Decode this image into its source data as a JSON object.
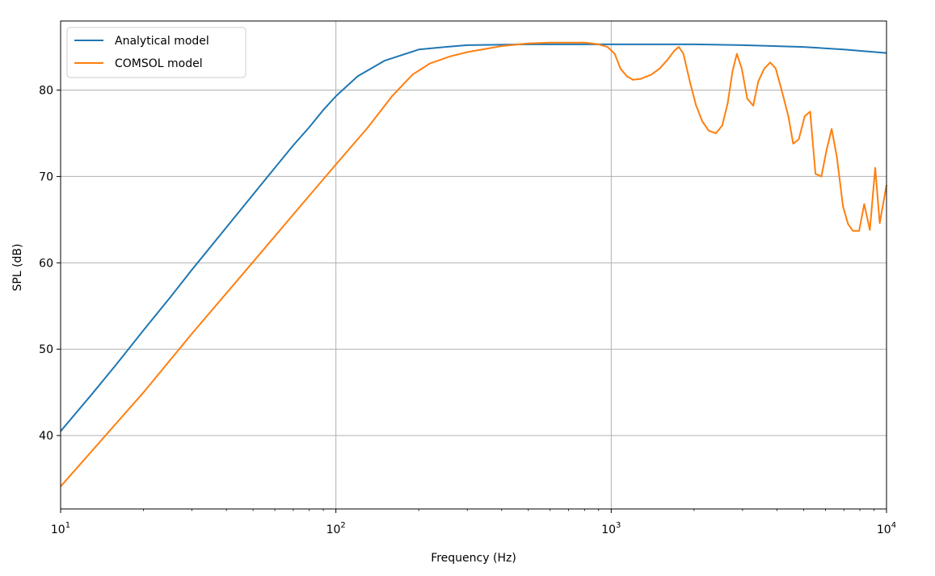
{
  "chart_data": {
    "type": "line",
    "title": "",
    "xlabel": "Frequency (Hz)",
    "ylabel": "SPL (dB)",
    "xscale": "log",
    "xlim": [
      10,
      10000
    ],
    "ylim": [
      31.5,
      88
    ],
    "grid": true,
    "legend_position": "top-left",
    "x_ticks": [
      {
        "base": "10",
        "exp": "1",
        "value": 10
      },
      {
        "base": "10",
        "exp": "2",
        "value": 100
      },
      {
        "base": "10",
        "exp": "3",
        "value": 1000
      },
      {
        "base": "10",
        "exp": "4",
        "value": 10000
      }
    ],
    "y_ticks": [
      {
        "label": "40",
        "value": 40
      },
      {
        "label": "50",
        "value": 50
      },
      {
        "label": "60",
        "value": 60
      },
      {
        "label": "70",
        "value": 70
      },
      {
        "label": "80",
        "value": 80
      }
    ],
    "series": [
      {
        "name": "Analytical model",
        "color": "#1f77b4",
        "points": [
          [
            10,
            40.5
          ],
          [
            13,
            44.8
          ],
          [
            16,
            48.3
          ],
          [
            20,
            52.2
          ],
          [
            25,
            56.0
          ],
          [
            30,
            59.2
          ],
          [
            40,
            64.1
          ],
          [
            50,
            67.9
          ],
          [
            60,
            71.0
          ],
          [
            70,
            73.6
          ],
          [
            80,
            75.7
          ],
          [
            90,
            77.7
          ],
          [
            100,
            79.3
          ],
          [
            120,
            81.6
          ],
          [
            150,
            83.4
          ],
          [
            200,
            84.7
          ],
          [
            250,
            85.0
          ],
          [
            300,
            85.2
          ],
          [
            500,
            85.3
          ],
          [
            1000,
            85.3
          ],
          [
            2000,
            85.3
          ],
          [
            3000,
            85.2
          ],
          [
            5000,
            85.0
          ],
          [
            7000,
            84.7
          ],
          [
            10000,
            84.3
          ]
        ]
      },
      {
        "name": "COMSOL model",
        "color": "#ff7f0e",
        "points": [
          [
            10,
            34.1
          ],
          [
            20,
            45.0
          ],
          [
            30,
            51.8
          ],
          [
            50,
            60.1
          ],
          [
            70,
            65.6
          ],
          [
            100,
            71.4
          ],
          [
            130,
            75.6
          ],
          [
            160,
            79.3
          ],
          [
            190,
            81.8
          ],
          [
            220,
            83.1
          ],
          [
            260,
            83.9
          ],
          [
            300,
            84.4
          ],
          [
            400,
            85.1
          ],
          [
            500,
            85.4
          ],
          [
            600,
            85.5
          ],
          [
            800,
            85.5
          ],
          [
            900,
            85.3
          ],
          [
            970,
            85.0
          ],
          [
            1030,
            84.2
          ],
          [
            1080,
            82.5
          ],
          [
            1140,
            81.6
          ],
          [
            1200,
            81.2
          ],
          [
            1280,
            81.3
          ],
          [
            1400,
            81.8
          ],
          [
            1500,
            82.5
          ],
          [
            1600,
            83.5
          ],
          [
            1700,
            84.6
          ],
          [
            1760,
            85.0
          ],
          [
            1830,
            84.2
          ],
          [
            1930,
            81.0
          ],
          [
            2030,
            78.3
          ],
          [
            2140,
            76.4
          ],
          [
            2260,
            75.3
          ],
          [
            2400,
            75.0
          ],
          [
            2530,
            75.9
          ],
          [
            2650,
            78.5
          ],
          [
            2760,
            82.2
          ],
          [
            2860,
            84.2
          ],
          [
            2980,
            82.5
          ],
          [
            3120,
            79.0
          ],
          [
            3280,
            78.2
          ],
          [
            3420,
            81.0
          ],
          [
            3600,
            82.5
          ],
          [
            3780,
            83.2
          ],
          [
            3960,
            82.5
          ],
          [
            4160,
            80.0
          ],
          [
            4400,
            77.0
          ],
          [
            4580,
            73.8
          ],
          [
            4800,
            74.3
          ],
          [
            5050,
            77.0
          ],
          [
            5280,
            77.5
          ],
          [
            5520,
            70.3
          ],
          [
            5800,
            70.0
          ],
          [
            6050,
            73.0
          ],
          [
            6320,
            75.5
          ],
          [
            6600,
            72.3
          ],
          [
            6950,
            66.5
          ],
          [
            7250,
            64.5
          ],
          [
            7550,
            63.7
          ],
          [
            7950,
            63.7
          ],
          [
            8300,
            66.8
          ],
          [
            8700,
            63.8
          ],
          [
            9100,
            71.0
          ],
          [
            9450,
            64.6
          ],
          [
            10000,
            69.0
          ]
        ]
      }
    ]
  }
}
